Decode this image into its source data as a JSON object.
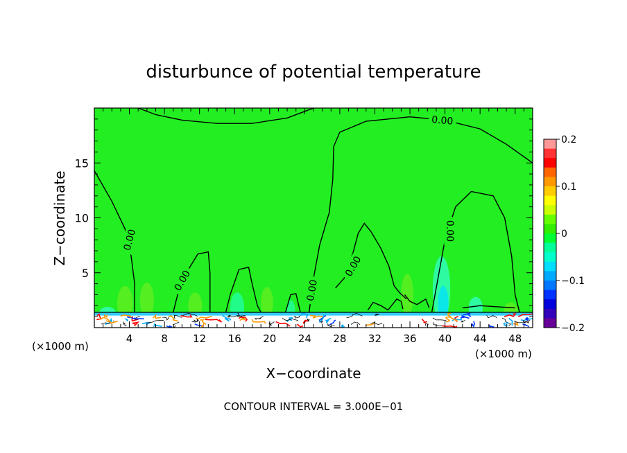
{
  "chart_data": {
    "type": "heatmap",
    "title": "disturbunce of potential temperature",
    "xlabel": "X−coordinate",
    "ylabel": "Z−coordinate",
    "x_unit": "(×1000 m)",
    "y_unit": "(×1000 m)",
    "xlim": [
      0,
      50
    ],
    "ylim": [
      0,
      20
    ],
    "xticks": [
      4,
      8,
      12,
      16,
      20,
      24,
      28,
      32,
      36,
      40,
      44,
      48
    ],
    "yticks": [
      5,
      10,
      15
    ],
    "footer": "CONTOUR INTERVAL = 3.000E−01",
    "contour_labels": [
      {
        "text": "0.00",
        "x": 39.7,
        "z": 18.9,
        "angle": 5
      },
      {
        "text": "0.00",
        "x": 4.0,
        "z": 8.0,
        "angle": -75
      },
      {
        "text": "0.00",
        "x": 10.0,
        "z": 4.3,
        "angle": -60
      },
      {
        "text": "0.00",
        "x": 24.8,
        "z": 3.4,
        "angle": -80
      },
      {
        "text": "0.00",
        "x": 29.5,
        "z": 5.6,
        "angle": -60
      },
      {
        "text": "0.00",
        "x": 40.6,
        "z": 8.8,
        "angle": 90
      }
    ],
    "colorbar": {
      "min": -0.2,
      "max": 0.2,
      "tick_labels": [
        "0.2",
        "0.1",
        "0",
        "−0.1",
        "−0.2"
      ],
      "tick_values": [
        0.2,
        0.1,
        0,
        -0.1,
        -0.2
      ],
      "colors": [
        "#ff9999",
        "#ff3333",
        "#ff0000",
        "#ff6600",
        "#ff9900",
        "#ffcc00",
        "#ffff00",
        "#ccff00",
        "#66ff00",
        "#33ee00",
        "#00ff33",
        "#00ff99",
        "#00ffcc",
        "#00ddff",
        "#00aaff",
        "#0077ff",
        "#0033ff",
        "#0000dd",
        "#3300bb",
        "#660099"
      ]
    },
    "background_color": "#22ee22",
    "contour_color": "#000000"
  }
}
